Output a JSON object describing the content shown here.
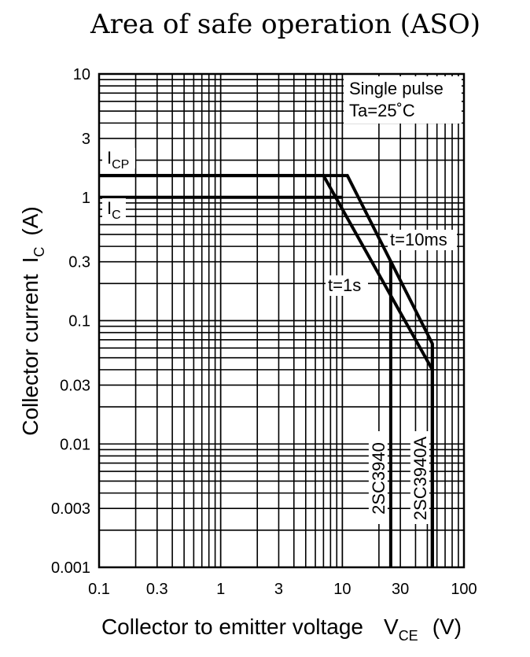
{
  "chart_data": {
    "type": "line",
    "title": "Area of safe operation (ASO)",
    "xlabel": "Collector to emitter voltage",
    "xlabel_symbol": "V",
    "xlabel_symbol_sub": "CE",
    "xlabel_unit": "(V)",
    "ylabel": "Collector current",
    "ylabel_symbol": "I",
    "ylabel_symbol_sub": "C",
    "ylabel_unit": "(A)",
    "x_scale": "log",
    "y_scale": "log",
    "xlim": [
      0.1,
      100
    ],
    "ylim": [
      0.001,
      10
    ],
    "grid": true,
    "x_ticks": [
      "0.1",
      "0.3",
      "1",
      "3",
      "10",
      "30",
      "100"
    ],
    "x_tick_values": [
      0.1,
      0.3,
      1,
      3,
      10,
      30,
      100
    ],
    "y_ticks": [
      "10",
      "3",
      "1",
      "0.3",
      "0.1",
      "0.03",
      "0.01",
      "0.003",
      "0.001"
    ],
    "y_tick_values": [
      10,
      3,
      1,
      0.3,
      0.1,
      0.03,
      0.01,
      0.003,
      0.001
    ],
    "conditions": [
      "Single pulse",
      "Ta=25˚C"
    ],
    "series": [
      {
        "name": "t=10ms",
        "x": [
          0.1,
          11,
          55,
          55
        ],
        "y": [
          1.5,
          1.5,
          0.065,
          0.001
        ]
      },
      {
        "name": "t=1s",
        "x": [
          0.1,
          7,
          55,
          55
        ],
        "y": [
          1.5,
          1.5,
          0.04,
          0.001
        ]
      }
    ],
    "limits": [
      {
        "name": "I",
        "sub": "CP",
        "y": 1.5
      },
      {
        "name": "I",
        "sub": "C",
        "y": 1.0
      }
    ],
    "ic_line": {
      "x": [
        0.1,
        10
      ],
      "y": [
        1.0,
        1.0
      ]
    },
    "vertical_limits": [
      {
        "name": "2SC3940",
        "x": 25
      },
      {
        "name": "2SC3940A",
        "x": 55
      }
    ]
  }
}
